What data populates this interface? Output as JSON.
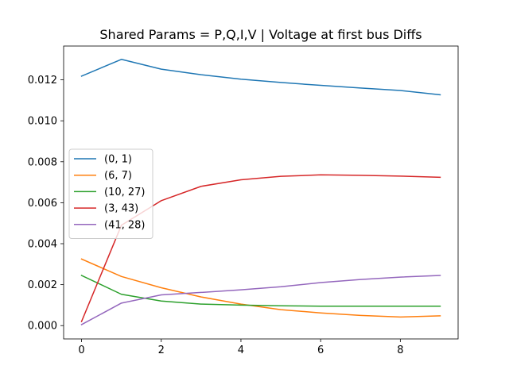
{
  "chart_data": {
    "type": "line",
    "title": "Shared Params =  P,Q,I,V | Voltage at first bus Diffs",
    "xlabel": "",
    "ylabel": "",
    "x": [
      0,
      1,
      2,
      3,
      4,
      5,
      6,
      7,
      8,
      9
    ],
    "xlim": [
      -0.45,
      9.45
    ],
    "ylim": [
      -0.00065,
      0.01365
    ],
    "xticks": [
      0,
      2,
      4,
      6,
      8
    ],
    "yticks": [
      0.0,
      0.002,
      0.004,
      0.006,
      0.008,
      0.01,
      0.012
    ],
    "ytick_labels": [
      "0.000",
      "0.002",
      "0.004",
      "0.006",
      "0.008",
      "0.010",
      "0.012"
    ],
    "legend_position": "center-left",
    "grid": false,
    "series": [
      {
        "name": "(0, 1)",
        "color": "#1f77b4",
        "values": [
          0.01218,
          0.013,
          0.01252,
          0.01225,
          0.01203,
          0.01187,
          0.01173,
          0.0116,
          0.01148,
          0.01127
        ]
      },
      {
        "name": "(6, 7)",
        "color": "#ff7f0e",
        "values": [
          0.00325,
          0.0024,
          0.00185,
          0.0014,
          0.00105,
          0.00078,
          0.00062,
          0.0005,
          0.00042,
          0.00048
        ]
      },
      {
        "name": "(10, 27)",
        "color": "#2ca02c",
        "values": [
          0.00245,
          0.00153,
          0.0012,
          0.00105,
          0.001,
          0.00097,
          0.00095,
          0.00095,
          0.00095,
          0.00095
        ]
      },
      {
        "name": "(3, 43)",
        "color": "#d62728",
        "values": [
          0.0002,
          0.0049,
          0.0061,
          0.0068,
          0.00712,
          0.00729,
          0.00736,
          0.00734,
          0.0073,
          0.00724
        ]
      },
      {
        "name": "(41, 28)",
        "color": "#9467bd",
        "values": [
          5e-05,
          0.0011,
          0.0015,
          0.00162,
          0.00175,
          0.0019,
          0.0021,
          0.00225,
          0.00237,
          0.00245
        ]
      }
    ]
  }
}
